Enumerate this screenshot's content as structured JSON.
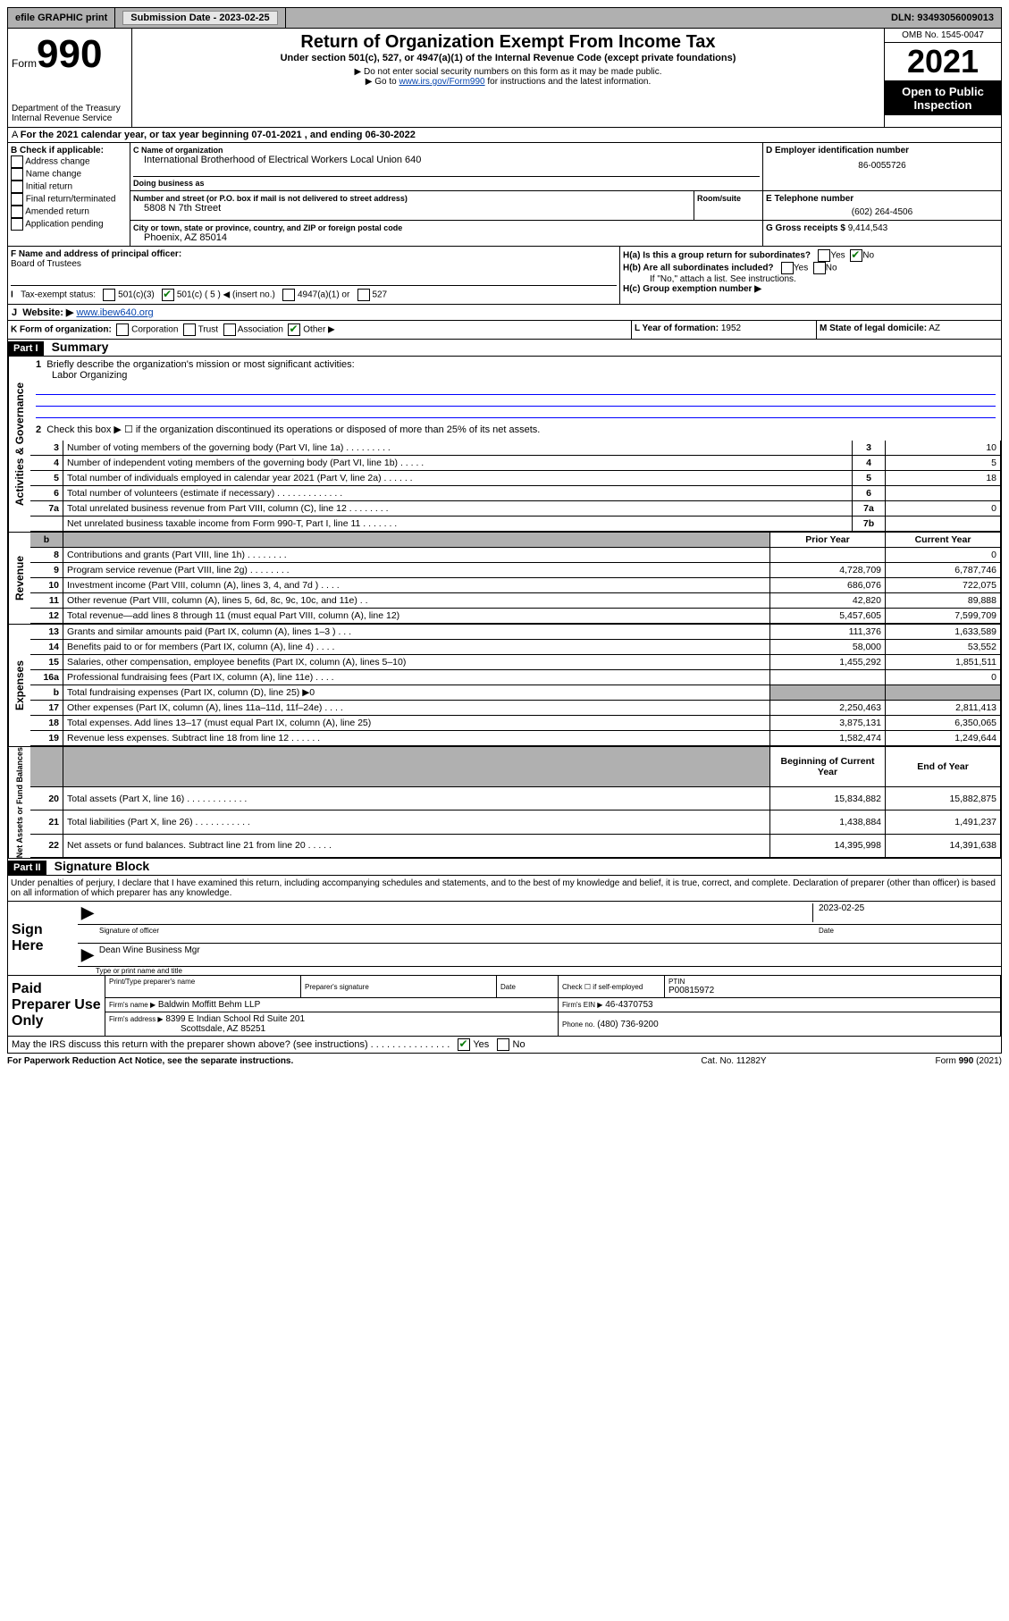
{
  "top": {
    "efile": "efile GRAPHIC print",
    "submission_label": "Submission Date - 2023-02-25",
    "dln": "DLN: 93493056009013"
  },
  "header": {
    "form_word": "Form",
    "form_num": "990",
    "title": "Return of Organization Exempt From Income Tax",
    "subtitle": "Under section 501(c), 527, or 4947(a)(1) of the Internal Revenue Code (except private foundations)",
    "note1": "▶ Do not enter social security numbers on this form as it may be made public.",
    "note2_pre": "▶ Go to ",
    "note2_link": "www.irs.gov/Form990",
    "note2_post": " for instructions and the latest information.",
    "dept": "Department of the Treasury",
    "irs": "Internal Revenue Service",
    "omb": "OMB No. 1545-0047",
    "year": "2021",
    "open": "Open to Public Inspection"
  },
  "A": {
    "text": "For the 2021 calendar year, or tax year beginning 07-01-2021    , and ending 06-30-2022"
  },
  "B": {
    "label": "B Check if applicable:",
    "items": [
      "Address change",
      "Name change",
      "Initial return",
      "Final return/terminated",
      "Amended return",
      "Application pending"
    ]
  },
  "C": {
    "name_lbl": "C Name of organization",
    "name": "International Brotherhood of Electrical Workers Local Union 640",
    "dba_lbl": "Doing business as",
    "addr_lbl": "Number and street (or P.O. box if mail is not delivered to street address)",
    "room_lbl": "Room/suite",
    "addr": "5808 N 7th Street",
    "city_lbl": "City or town, state or province, country, and ZIP or foreign postal code",
    "city": "Phoenix, AZ  85014"
  },
  "D": {
    "lbl": "D Employer identification number",
    "val": "86-0055726"
  },
  "E": {
    "lbl": "E Telephone number",
    "val": "(602) 264-4506"
  },
  "G": {
    "lbl": "G Gross receipts $",
    "val": "9,414,543"
  },
  "F": {
    "lbl": "F  Name and address of principal officer:",
    "val": "Board of Trustees"
  },
  "H": {
    "a_lbl": "H(a)  Is this a group return for subordinates?",
    "b_lbl": "H(b)  Are all subordinates included?",
    "b_note": "If \"No,\" attach a list. See instructions.",
    "c_lbl": "H(c)  Group exemption number ▶",
    "yes": "Yes",
    "no": "No"
  },
  "I": {
    "lbl": "Tax-exempt status:",
    "opts": [
      "501(c)(3)",
      "501(c) ( 5 ) ◀ (insert no.)",
      "4947(a)(1) or",
      "527"
    ]
  },
  "J": {
    "lbl": "Website: ▶",
    "val": "www.ibew640.org"
  },
  "K": {
    "lbl": "K Form of organization:",
    "opts": [
      "Corporation",
      "Trust",
      "Association",
      "Other ▶"
    ]
  },
  "L": {
    "lbl": "L Year of formation:",
    "val": "1952"
  },
  "M": {
    "lbl": "M State of legal domicile:",
    "val": "AZ"
  },
  "part1": {
    "hdr": "Part I",
    "title": "Summary",
    "line1_lbl": "Briefly describe the organization's mission or most significant activities:",
    "line1_val": "Labor Organizing",
    "line2": "Check this box ▶ ☐  if the organization discontinued its operations or disposed of more than 25% of its net assets.",
    "rows_act": [
      {
        "n": "3",
        "d": "Number of voting members of the governing body (Part VI, line 1a)  .   .   .   .   .   .   .   .   .",
        "b": "3",
        "v": "10"
      },
      {
        "n": "4",
        "d": "Number of independent voting members of the governing body (Part VI, line 1b)    .   .   .   .   .",
        "b": "4",
        "v": "5"
      },
      {
        "n": "5",
        "d": "Total number of individuals employed in calendar year 2021 (Part V, line 2a)   .   .   .   .   .   .",
        "b": "5",
        "v": "18"
      },
      {
        "n": "6",
        "d": "Total number of volunteers (estimate if necessary)   .   .   .   .   .   .   .   .   .   .   .   .   .",
        "b": "6",
        "v": ""
      },
      {
        "n": "7a",
        "d": "Total unrelated business revenue from Part VIII, column (C), line 12   .   .   .   .   .   .   .   .",
        "b": "7a",
        "v": "0"
      },
      {
        "n": "",
        "d": "Net unrelated business taxable income from Form 990-T, Part I, line 11   .   .   .   .   .   .   .",
        "b": "7b",
        "v": ""
      }
    ],
    "col_prior": "Prior Year",
    "col_curr": "Current Year",
    "rows_rev": [
      {
        "n": "8",
        "d": "Contributions and grants (Part VIII, line 1h)   .   .   .   .   .   .   .   .",
        "p": "",
        "c": "0"
      },
      {
        "n": "9",
        "d": "Program service revenue (Part VIII, line 2g)   .   .   .   .   .   .   .   .",
        "p": "4,728,709",
        "c": "6,787,746"
      },
      {
        "n": "10",
        "d": "Investment income (Part VIII, column (A), lines 3, 4, and 7d )   .   .   .   .",
        "p": "686,076",
        "c": "722,075"
      },
      {
        "n": "11",
        "d": "Other revenue (Part VIII, column (A), lines 5, 6d, 8c, 9c, 10c, and 11e)   .   .",
        "p": "42,820",
        "c": "89,888"
      },
      {
        "n": "12",
        "d": "Total revenue—add lines 8 through 11 (must equal Part VIII, column (A), line 12)",
        "p": "5,457,605",
        "c": "7,599,709"
      }
    ],
    "rows_exp": [
      {
        "n": "13",
        "d": "Grants and similar amounts paid (Part IX, column (A), lines 1–3 )   .   .   .",
        "p": "111,376",
        "c": "1,633,589"
      },
      {
        "n": "14",
        "d": "Benefits paid to or for members (Part IX, column (A), line 4)   .   .   .   .",
        "p": "58,000",
        "c": "53,552"
      },
      {
        "n": "15",
        "d": "Salaries, other compensation, employee benefits (Part IX, column (A), lines 5–10)",
        "p": "1,455,292",
        "c": "1,851,511"
      },
      {
        "n": "16a",
        "d": "Professional fundraising fees (Part IX, column (A), line 11e)   .   .   .   .",
        "p": "",
        "c": "0"
      },
      {
        "n": "b",
        "d": "Total fundraising expenses (Part IX, column (D), line 25) ▶0",
        "p": "grey",
        "c": "grey"
      },
      {
        "n": "17",
        "d": "Other expenses (Part IX, column (A), lines 11a–11d, 11f–24e)   .   .   .   .",
        "p": "2,250,463",
        "c": "2,811,413"
      },
      {
        "n": "18",
        "d": "Total expenses. Add lines 13–17 (must equal Part IX, column (A), line 25)",
        "p": "3,875,131",
        "c": "6,350,065"
      },
      {
        "n": "19",
        "d": "Revenue less expenses. Subtract line 18 from line 12   .   .   .   .   .   .",
        "p": "1,582,474",
        "c": "1,249,644"
      }
    ],
    "col_beg": "Beginning of Current Year",
    "col_end": "End of Year",
    "rows_net": [
      {
        "n": "20",
        "d": "Total assets (Part X, line 16)   .   .   .   .   .   .   .   .   .   .   .   .",
        "p": "15,834,882",
        "c": "15,882,875"
      },
      {
        "n": "21",
        "d": "Total liabilities (Part X, line 26)   .   .   .   .   .   .   .   .   .   .   .",
        "p": "1,438,884",
        "c": "1,491,237"
      },
      {
        "n": "22",
        "d": "Net assets or fund balances. Subtract line 21 from line 20   .   .   .   .   .",
        "p": "14,395,998",
        "c": "14,391,638"
      }
    ],
    "side_act": "Activities & Governance",
    "side_rev": "Revenue",
    "side_exp": "Expenses",
    "side_net": "Net Assets or Fund Balances"
  },
  "part2": {
    "hdr": "Part II",
    "title": "Signature Block",
    "disclaimer": "Under penalties of perjury, I declare that I have examined this return, including accompanying schedules and statements, and to the best of my knowledge and belief, it is true, correct, and complete. Declaration of preparer (other than officer) is based on all information of which preparer has any knowledge.",
    "sign_here": "Sign Here",
    "sig_officer_lbl": "Signature of officer",
    "date_val": "2023-02-25",
    "date_lbl": "Date",
    "officer_name": "Dean Wine  Business Mgr",
    "officer_name_lbl": "Type or print name and title",
    "paid": "Paid Preparer Use Only",
    "prep_name_lbl": "Print/Type preparer's name",
    "prep_sig_lbl": "Preparer's signature",
    "prep_date_lbl": "Date",
    "check_if": "Check ☐ if self-employed",
    "ptin_lbl": "PTIN",
    "ptin": "P00815972",
    "firm_name_lbl": "Firm's name     ▶",
    "firm_name": "Baldwin Moffitt Behm LLP",
    "firm_ein_lbl": "Firm's EIN ▶",
    "firm_ein": "46-4370753",
    "firm_addr_lbl": "Firm's address ▶",
    "firm_addr": "8399 E Indian School Rd Suite 201",
    "firm_city": "Scottsdale, AZ  85251",
    "phone_lbl": "Phone no.",
    "phone": "(480) 736-9200",
    "may_irs": "May the IRS discuss this return with the preparer shown above? (see instructions)   .   .   .   .   .   .   .   .   .   .   .   .   .   .   ."
  },
  "footer": {
    "paperwork": "For Paperwork Reduction Act Notice, see the separate instructions.",
    "cat": "Cat. No. 11282Y",
    "form": "Form 990 (2021)"
  }
}
